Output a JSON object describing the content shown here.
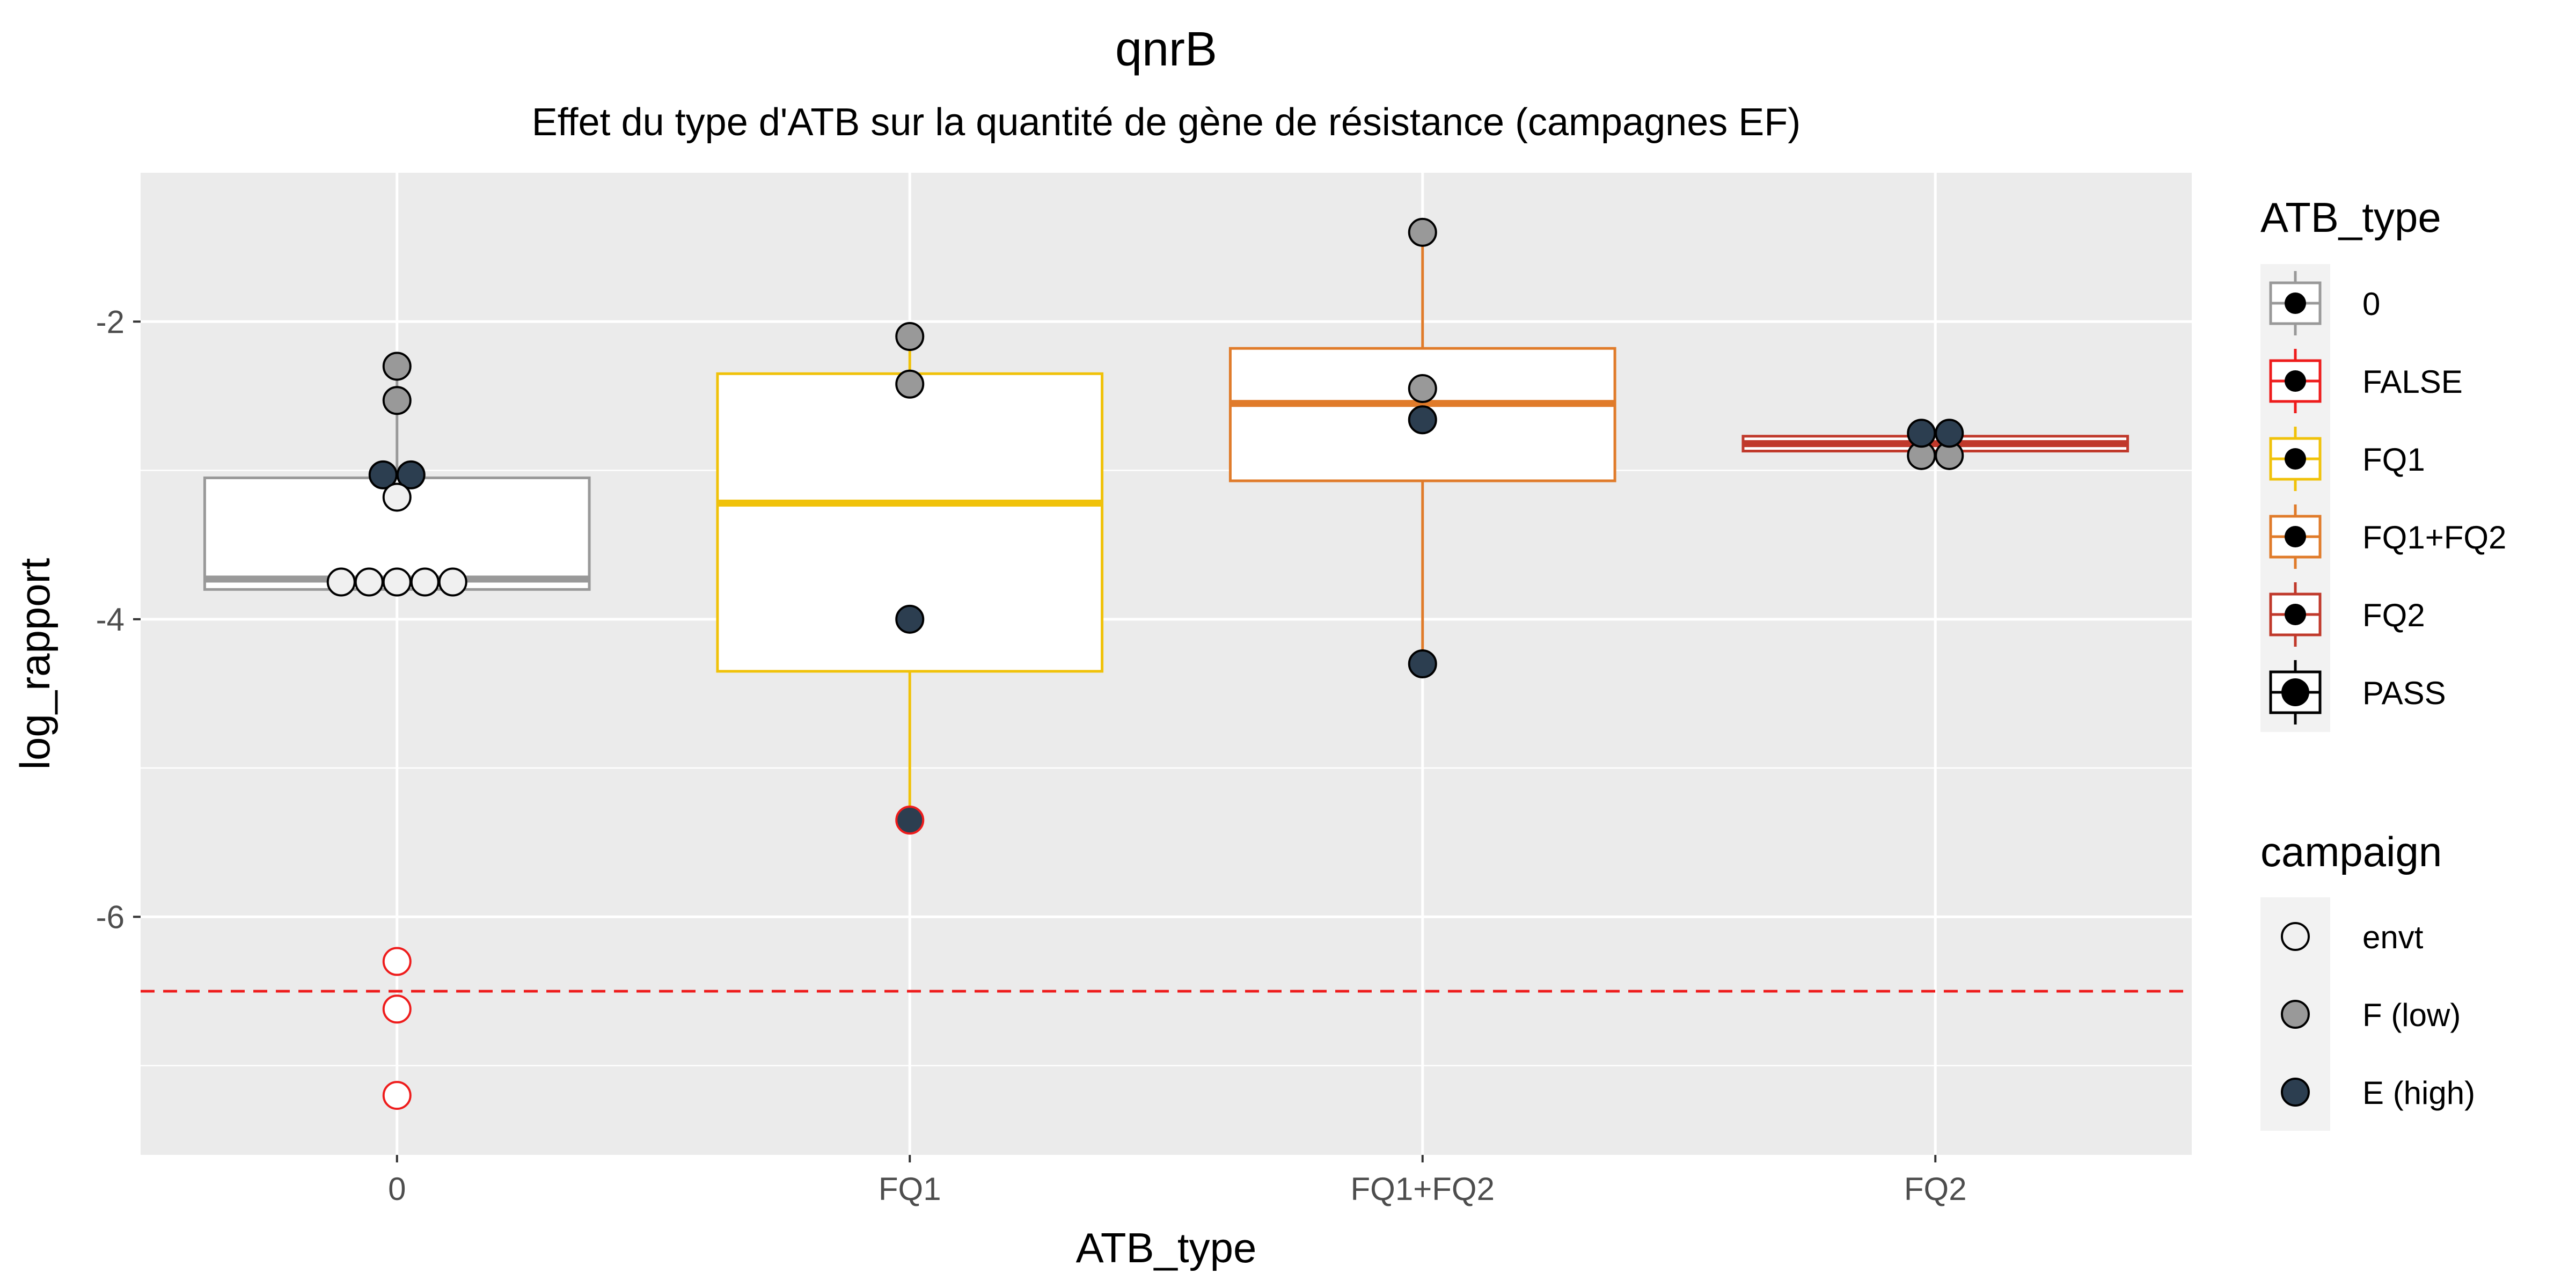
{
  "chart_data": {
    "type": "boxplot",
    "title": "qnrB",
    "subtitle": "Effet du type d'ATB sur la quantité de gène de résistance (campagnes EF)",
    "xlabel": "ATB_type",
    "ylabel": "log_rapport",
    "categories": [
      "0",
      "FQ1",
      "FQ1+FQ2",
      "FQ2"
    ],
    "ylim": [
      -7.6,
      -1.0
    ],
    "yticks": [
      -2,
      -4,
      -6
    ],
    "grid": true,
    "threshold_line": {
      "y": -6.5,
      "color": "#ee1c1c",
      "style": "dashed"
    },
    "boxes": [
      {
        "category": "0",
        "atb_type": "0",
        "q1": -3.8,
        "median": -3.73,
        "q3": -3.05,
        "whisker_low": -3.8,
        "whisker_high": -2.3,
        "color": "#999999"
      },
      {
        "category": "FQ1",
        "atb_type": "FQ1",
        "q1": -4.35,
        "median": -3.22,
        "q3": -2.35,
        "whisker_low": -5.35,
        "whisker_high": -2.1,
        "color": "#f0c20a"
      },
      {
        "category": "FQ1+FQ2",
        "atb_type": "FQ1+FQ2",
        "q1": -3.07,
        "median": -2.55,
        "q3": -2.18,
        "whisker_low": -4.3,
        "whisker_high": -1.4,
        "color": "#e07b2a"
      },
      {
        "category": "FQ2",
        "atb_type": "FQ2",
        "q1": -2.87,
        "median": -2.82,
        "q3": -2.77,
        "whisker_low": -2.87,
        "whisker_high": -2.77,
        "color": "#c0392b"
      }
    ],
    "points": [
      {
        "category": "0",
        "y": -2.3,
        "campaign": "F (low)",
        "outline": "black"
      },
      {
        "category": "0",
        "y": -2.53,
        "campaign": "F (low)",
        "outline": "black"
      },
      {
        "category": "0",
        "y": -3.03,
        "campaign": "E (high)",
        "outline": "black"
      },
      {
        "category": "0",
        "y": -3.03,
        "campaign": "E (high)",
        "outline": "black"
      },
      {
        "category": "0",
        "y": -3.18,
        "campaign": "envt",
        "outline": "black"
      },
      {
        "category": "0",
        "y": -3.75,
        "campaign": "envt",
        "outline": "black"
      },
      {
        "category": "0",
        "y": -3.75,
        "campaign": "envt",
        "outline": "black"
      },
      {
        "category": "0",
        "y": -3.75,
        "campaign": "envt",
        "outline": "black"
      },
      {
        "category": "0",
        "y": -3.75,
        "campaign": "envt",
        "outline": "black"
      },
      {
        "category": "0",
        "y": -3.75,
        "campaign": "envt",
        "outline": "black"
      },
      {
        "category": "0",
        "y": -6.3,
        "campaign": "envt",
        "outline": "red"
      },
      {
        "category": "0",
        "y": -6.62,
        "campaign": "envt",
        "outline": "red"
      },
      {
        "category": "0",
        "y": -7.2,
        "campaign": "envt",
        "outline": "red"
      },
      {
        "category": "FQ1",
        "y": -2.1,
        "campaign": "F (low)",
        "outline": "black"
      },
      {
        "category": "FQ1",
        "y": -2.42,
        "campaign": "F (low)",
        "outline": "black"
      },
      {
        "category": "FQ1",
        "y": -4.0,
        "campaign": "E (high)",
        "outline": "black"
      },
      {
        "category": "FQ1",
        "y": -5.35,
        "campaign": "E (high)",
        "outline": "red"
      },
      {
        "category": "FQ1+FQ2",
        "y": -1.4,
        "campaign": "F (low)",
        "outline": "black"
      },
      {
        "category": "FQ1+FQ2",
        "y": -2.45,
        "campaign": "F (low)",
        "outline": "black"
      },
      {
        "category": "FQ1+FQ2",
        "y": -2.66,
        "campaign": "E (high)",
        "outline": "black"
      },
      {
        "category": "FQ1+FQ2",
        "y": -4.3,
        "campaign": "E (high)",
        "outline": "black"
      },
      {
        "category": "FQ2",
        "y": -2.9,
        "campaign": "F (low)",
        "outline": "black"
      },
      {
        "category": "FQ2",
        "y": -2.9,
        "campaign": "F (low)",
        "outline": "black"
      },
      {
        "category": "FQ2",
        "y": -2.75,
        "campaign": "E (high)",
        "outline": "black"
      },
      {
        "category": "FQ2",
        "y": -2.75,
        "campaign": "E (high)",
        "outline": "black"
      }
    ],
    "legend_atb": {
      "title": "ATB_type",
      "placement": "right",
      "entries": [
        {
          "label": "0",
          "color": "#999999"
        },
        {
          "label": "FALSE",
          "color": "#ee1c1c"
        },
        {
          "label": "FQ1",
          "color": "#f0c20a"
        },
        {
          "label": "FQ1+FQ2",
          "color": "#e07b2a"
        },
        {
          "label": "FQ2",
          "color": "#c0392b"
        },
        {
          "label": "PASS",
          "color": "#000000"
        }
      ]
    },
    "legend_campaign": {
      "title": "campaign",
      "placement": "right",
      "entries": [
        {
          "label": "envt",
          "fill": "#f0f0f0"
        },
        {
          "label": "F (low)",
          "fill": "#999999"
        },
        {
          "label": "E (high)",
          "fill": "#2c3e50"
        }
      ]
    }
  }
}
